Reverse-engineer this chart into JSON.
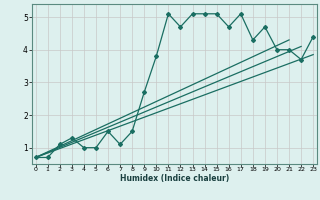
{
  "xlabel": "Humidex (Indice chaleur)",
  "x_values": [
    0,
    1,
    2,
    3,
    4,
    5,
    6,
    7,
    8,
    9,
    10,
    11,
    12,
    13,
    14,
    15,
    16,
    17,
    18,
    19,
    20,
    21,
    22,
    23
  ],
  "line1": [
    0.7,
    0.7,
    1.1,
    1.3,
    1.0,
    1.0,
    1.5,
    1.1,
    1.5,
    2.7,
    3.8,
    5.1,
    4.7,
    5.1,
    5.1,
    5.1,
    4.7,
    5.1,
    4.3,
    4.7,
    4.0,
    4.0,
    3.7,
    4.4
  ],
  "line2_x": [
    0,
    21
  ],
  "line2_y": [
    0.7,
    4.3
  ],
  "line3_x": [
    0,
    22
  ],
  "line3_y": [
    0.7,
    4.1
  ],
  "line4_x": [
    0,
    23
  ],
  "line4_y": [
    0.7,
    3.85
  ],
  "bg_color": "#ddf0ee",
  "grid_color": "#c8c8c8",
  "line_color": "#1a6e62",
  "ylim": [
    0.5,
    5.4
  ],
  "xlim": [
    0,
    23
  ],
  "yticks": [
    1,
    2,
    3,
    4,
    5
  ],
  "xticks": [
    0,
    1,
    2,
    3,
    4,
    5,
    6,
    7,
    8,
    9,
    10,
    11,
    12,
    13,
    14,
    15,
    16,
    17,
    18,
    19,
    20,
    21,
    22,
    23
  ]
}
